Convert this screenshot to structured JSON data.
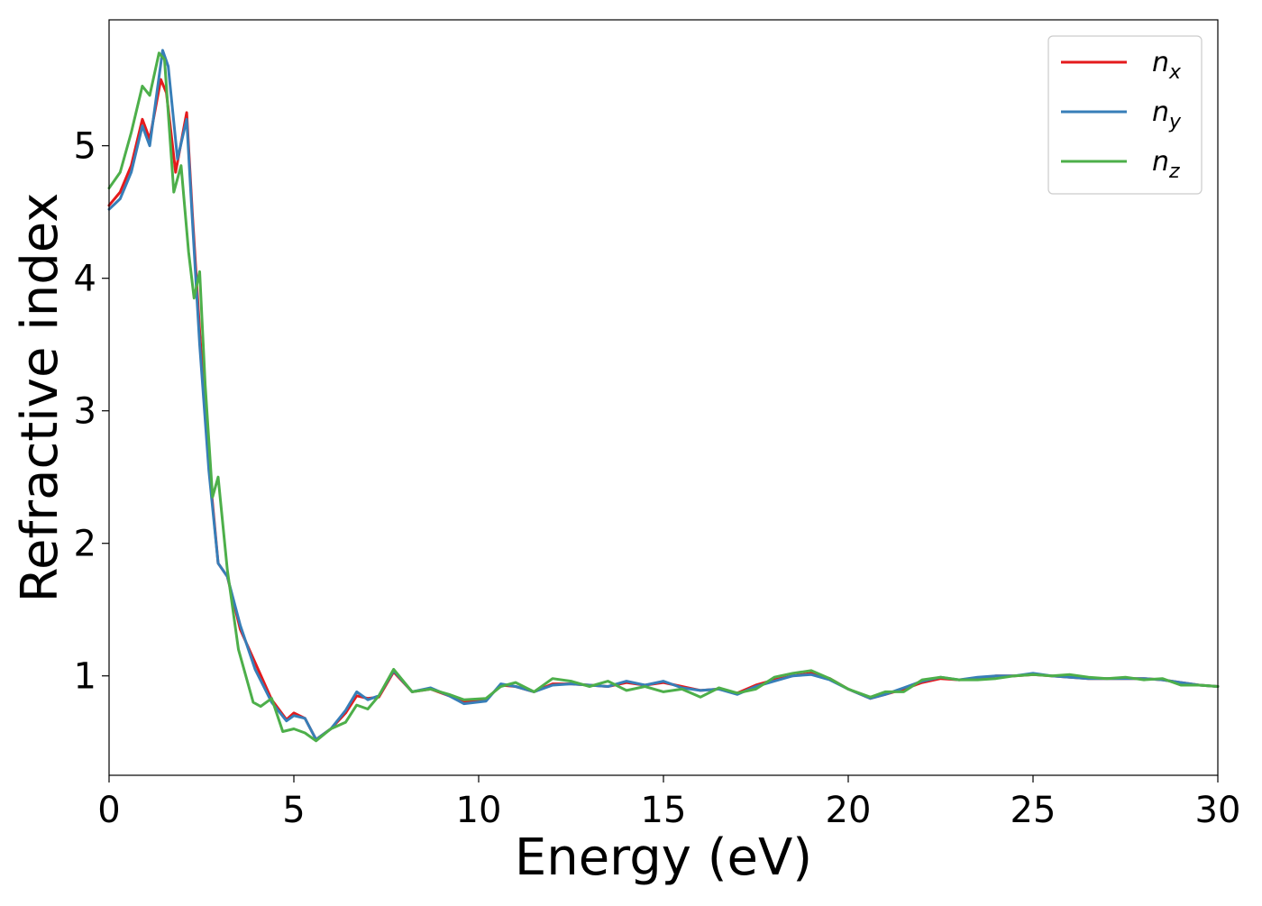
{
  "chart_data": {
    "type": "line",
    "xlabel": "Energy (eV)",
    "ylabel": "Refractive index",
    "xlim": [
      0,
      30
    ],
    "ylim": [
      0.25,
      5.95
    ],
    "x_ticks": [
      "0",
      "5",
      "10",
      "15",
      "20",
      "25",
      "30"
    ],
    "y_ticks": [
      "1",
      "2",
      "3",
      "4",
      "5"
    ],
    "grid": false,
    "legend_position": "top-right",
    "series": [
      {
        "name": "n",
        "subscript": "x",
        "color": "#e41a1c",
        "x": [
          0,
          0.3,
          0.6,
          0.9,
          1.1,
          1.4,
          1.55,
          1.8,
          2.1,
          2.25,
          2.45,
          2.7,
          2.95,
          3.2,
          3.55,
          3.95,
          4.4,
          4.8,
          5.0,
          5.3,
          5.6,
          6.0,
          6.4,
          6.7,
          7.0,
          7.3,
          7.7,
          8.2,
          8.7,
          9.2,
          9.6,
          10.2,
          10.6,
          11.0,
          11.5,
          12.0,
          12.5,
          13.0,
          13.5,
          14.0,
          14.5,
          15.0,
          15.5,
          16.0,
          16.5,
          17.0,
          17.5,
          18.0,
          18.5,
          19.0,
          19.5,
          20.0,
          20.6,
          21.0,
          21.5,
          22.0,
          22.5,
          23.0,
          23.5,
          24.0,
          24.5,
          25.0,
          25.5,
          26.0,
          26.5,
          27.0,
          27.5,
          28.0,
          28.5,
          29.0,
          29.5,
          30.0
        ],
        "y": [
          4.55,
          4.65,
          4.85,
          5.2,
          5.05,
          5.5,
          5.4,
          4.8,
          5.25,
          4.5,
          3.6,
          2.6,
          1.85,
          1.75,
          1.35,
          1.1,
          0.82,
          0.67,
          0.72,
          0.68,
          0.52,
          0.6,
          0.72,
          0.85,
          0.83,
          0.84,
          1.03,
          0.88,
          0.9,
          0.85,
          0.8,
          0.82,
          0.93,
          0.92,
          0.88,
          0.94,
          0.94,
          0.93,
          0.92,
          0.95,
          0.93,
          0.95,
          0.92,
          0.89,
          0.9,
          0.87,
          0.93,
          0.97,
          1.0,
          1.02,
          0.98,
          0.9,
          0.83,
          0.86,
          0.9,
          0.95,
          0.98,
          0.97,
          0.98,
          1.0,
          1.0,
          1.01,
          1.0,
          0.99,
          0.98,
          0.98,
          0.98,
          0.98,
          0.97,
          0.95,
          0.93,
          0.92
        ]
      },
      {
        "name": "n",
        "subscript": "y",
        "color": "#377eb8",
        "x": [
          0,
          0.3,
          0.6,
          0.9,
          1.1,
          1.45,
          1.6,
          1.85,
          2.1,
          2.25,
          2.45,
          2.7,
          2.95,
          3.2,
          3.55,
          3.95,
          4.4,
          4.8,
          5.0,
          5.3,
          5.6,
          6.0,
          6.4,
          6.7,
          7.0,
          7.3,
          7.7,
          8.2,
          8.7,
          9.2,
          9.6,
          10.2,
          10.6,
          11.0,
          11.5,
          12.0,
          12.5,
          13.0,
          13.5,
          14.0,
          14.5,
          15.0,
          15.5,
          16.0,
          16.5,
          17.0,
          17.5,
          18.0,
          18.5,
          19.0,
          19.5,
          20.0,
          20.6,
          21.0,
          21.5,
          22.0,
          22.5,
          23.0,
          23.5,
          24.0,
          24.5,
          25.0,
          25.5,
          26.0,
          26.5,
          27.0,
          27.5,
          28.0,
          28.5,
          29.0,
          29.5,
          30.0
        ],
        "y": [
          4.52,
          4.6,
          4.8,
          5.15,
          5.0,
          5.72,
          5.6,
          4.9,
          5.2,
          4.45,
          3.5,
          2.55,
          1.85,
          1.75,
          1.38,
          1.05,
          0.8,
          0.66,
          0.7,
          0.68,
          0.52,
          0.6,
          0.74,
          0.88,
          0.82,
          0.85,
          1.04,
          0.88,
          0.91,
          0.85,
          0.79,
          0.81,
          0.94,
          0.92,
          0.88,
          0.93,
          0.94,
          0.93,
          0.92,
          0.96,
          0.93,
          0.96,
          0.91,
          0.89,
          0.9,
          0.86,
          0.92,
          0.96,
          1.0,
          1.01,
          0.97,
          0.9,
          0.83,
          0.86,
          0.91,
          0.96,
          0.99,
          0.97,
          0.99,
          1.0,
          1.0,
          1.02,
          1.0,
          0.99,
          0.98,
          0.98,
          0.98,
          0.98,
          0.97,
          0.95,
          0.93,
          0.92
        ]
      },
      {
        "name": "n",
        "subscript": "z",
        "color": "#4daf4a",
        "x": [
          0,
          0.3,
          0.6,
          0.9,
          1.1,
          1.35,
          1.5,
          1.75,
          1.95,
          2.15,
          2.3,
          2.45,
          2.6,
          2.8,
          2.95,
          3.2,
          3.5,
          3.9,
          4.1,
          4.4,
          4.7,
          5.0,
          5.3,
          5.6,
          6.0,
          6.4,
          6.7,
          7.0,
          7.3,
          7.7,
          8.2,
          8.7,
          9.2,
          9.6,
          10.2,
          10.6,
          11.0,
          11.5,
          12.0,
          12.5,
          13.0,
          13.5,
          14.0,
          14.5,
          15.0,
          15.5,
          16.0,
          16.5,
          17.0,
          17.5,
          18.0,
          18.5,
          19.0,
          19.5,
          20.0,
          20.6,
          21.0,
          21.5,
          22.0,
          22.5,
          23.0,
          23.5,
          24.0,
          24.5,
          25.0,
          25.5,
          26.0,
          26.5,
          27.0,
          27.5,
          28.0,
          28.5,
          29.0,
          29.5,
          30.0
        ],
        "y": [
          4.68,
          4.8,
          5.1,
          5.45,
          5.38,
          5.7,
          5.65,
          4.65,
          4.85,
          4.2,
          3.85,
          4.05,
          3.2,
          2.35,
          2.5,
          1.8,
          1.2,
          0.8,
          0.77,
          0.83,
          0.58,
          0.6,
          0.57,
          0.51,
          0.6,
          0.65,
          0.78,
          0.75,
          0.85,
          1.05,
          0.88,
          0.9,
          0.86,
          0.82,
          0.83,
          0.92,
          0.95,
          0.88,
          0.98,
          0.96,
          0.92,
          0.96,
          0.89,
          0.92,
          0.88,
          0.9,
          0.84,
          0.91,
          0.87,
          0.9,
          0.99,
          1.02,
          1.04,
          0.98,
          0.9,
          0.84,
          0.88,
          0.88,
          0.97,
          0.99,
          0.97,
          0.97,
          0.98,
          1.0,
          1.01,
          1.0,
          1.01,
          0.99,
          0.98,
          0.99,
          0.97,
          0.98,
          0.93,
          0.93,
          0.92
        ]
      }
    ]
  }
}
